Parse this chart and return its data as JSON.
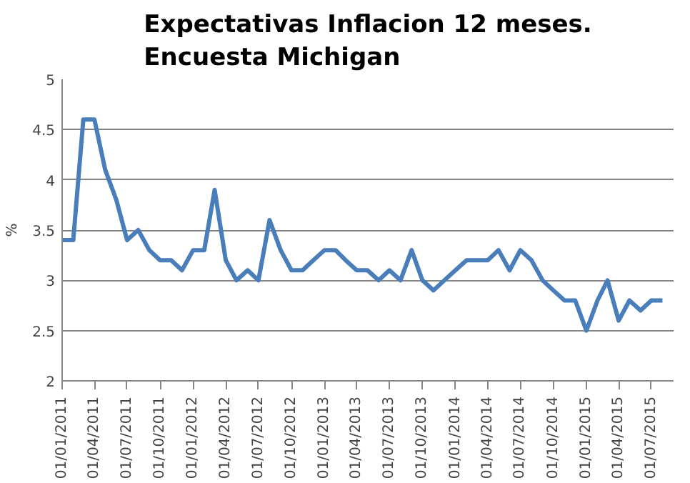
{
  "chart_data": {
    "type": "line",
    "title": "Expectativas Inflacion 12 meses.\nEncuesta Michigan",
    "ylabel": "%",
    "x": [
      "2011-01",
      "2011-02",
      "2011-03",
      "2011-04",
      "2011-05",
      "2011-06",
      "2011-07",
      "2011-08",
      "2011-09",
      "2011-10",
      "2011-11",
      "2011-12",
      "2012-01",
      "2012-02",
      "2012-03",
      "2012-04",
      "2012-05",
      "2012-06",
      "2012-07",
      "2012-08",
      "2012-09",
      "2012-10",
      "2012-11",
      "2012-12",
      "2013-01",
      "2013-02",
      "2013-03",
      "2013-04",
      "2013-05",
      "2013-06",
      "2013-07",
      "2013-08",
      "2013-09",
      "2013-10",
      "2013-11",
      "2013-12",
      "2014-01",
      "2014-02",
      "2014-03",
      "2014-04",
      "2014-05",
      "2014-06",
      "2014-07",
      "2014-08",
      "2014-09",
      "2014-10",
      "2014-11",
      "2014-12",
      "2015-01",
      "2015-02",
      "2015-03",
      "2015-04",
      "2015-05",
      "2015-06",
      "2015-07",
      "2015-08"
    ],
    "series": [
      {
        "color": "#4a7ebb",
        "values": [
          3.4,
          3.4,
          4.6,
          4.6,
          4.1,
          3.8,
          3.4,
          3.5,
          3.3,
          3.2,
          3.2,
          3.1,
          3.3,
          3.3,
          3.9,
          3.2,
          3.0,
          3.1,
          3.0,
          3.6,
          3.3,
          3.1,
          3.1,
          3.2,
          3.3,
          3.3,
          3.2,
          3.1,
          3.1,
          3.0,
          3.1,
          3.0,
          3.3,
          3.0,
          2.9,
          3.0,
          3.1,
          3.2,
          3.2,
          3.2,
          3.3,
          3.1,
          3.3,
          3.2,
          3.0,
          2.9,
          2.8,
          2.8,
          2.5,
          2.8,
          3.0,
          2.6,
          2.8,
          2.7,
          2.8,
          2.8
        ]
      }
    ],
    "xlim": [
      "2011-01-01",
      "2015-09-01"
    ],
    "xticks": [
      {
        "value": "2011-01-01",
        "label": "01/01/2011"
      },
      {
        "value": "2011-04-01",
        "label": "01/04/2011"
      },
      {
        "value": "2011-07-01",
        "label": "01/07/2011"
      },
      {
        "value": "2011-10-01",
        "label": "01/10/2011"
      },
      {
        "value": "2012-01-01",
        "label": "01/01/2012"
      },
      {
        "value": "2012-04-01",
        "label": "01/04/2012"
      },
      {
        "value": "2012-07-01",
        "label": "01/07/2012"
      },
      {
        "value": "2012-10-01",
        "label": "01/10/2012"
      },
      {
        "value": "2013-01-01",
        "label": "01/01/2013"
      },
      {
        "value": "2013-04-01",
        "label": "01/04/2013"
      },
      {
        "value": "2013-07-01",
        "label": "01/07/2013"
      },
      {
        "value": "2013-10-01",
        "label": "01/10/2013"
      },
      {
        "value": "2014-01-01",
        "label": "01/01/2014"
      },
      {
        "value": "2014-04-01",
        "label": "01/04/2014"
      },
      {
        "value": "2014-07-01",
        "label": "01/07/2014"
      },
      {
        "value": "2014-10-01",
        "label": "01/10/2014"
      },
      {
        "value": "2015-01-01",
        "label": "01/01/2015"
      },
      {
        "value": "2015-04-01",
        "label": "01/04/2015"
      },
      {
        "value": "2015-07-01",
        "label": "01/07/2015"
      }
    ],
    "ylim": [
      2,
      5
    ],
    "yticks": [
      2,
      2.5,
      3,
      3.5,
      4,
      4.5,
      5
    ],
    "grid": "y",
    "marker": "none",
    "line_style": "solid"
  }
}
